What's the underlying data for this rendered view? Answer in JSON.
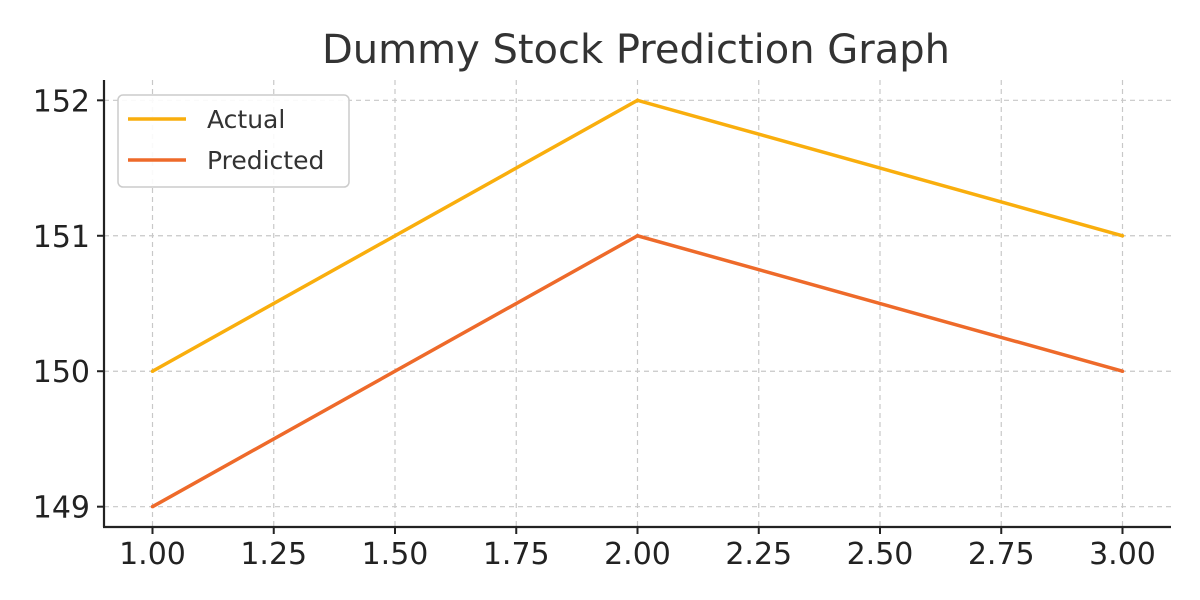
{
  "chart_data": {
    "type": "line",
    "title": "Dummy Stock Prediction Graph",
    "xlabel": "",
    "ylabel": "",
    "xlim": [
      0.9,
      3.1
    ],
    "ylim": [
      148.85,
      152.15
    ],
    "x": [
      1.0,
      2.0,
      3.0
    ],
    "xticks": [
      "1.00",
      "1.25",
      "1.50",
      "1.75",
      "2.00",
      "2.25",
      "2.50",
      "2.75",
      "3.00"
    ],
    "yticks": [
      "149",
      "150",
      "151",
      "152"
    ],
    "grid": true,
    "legend_position": "top-left",
    "series": [
      {
        "name": "Actual",
        "values": [
          150,
          152,
          151
        ],
        "color": "#F9AE0D"
      },
      {
        "name": "Predicted",
        "values": [
          149,
          151,
          150
        ],
        "color": "#EE6A2A"
      }
    ]
  }
}
